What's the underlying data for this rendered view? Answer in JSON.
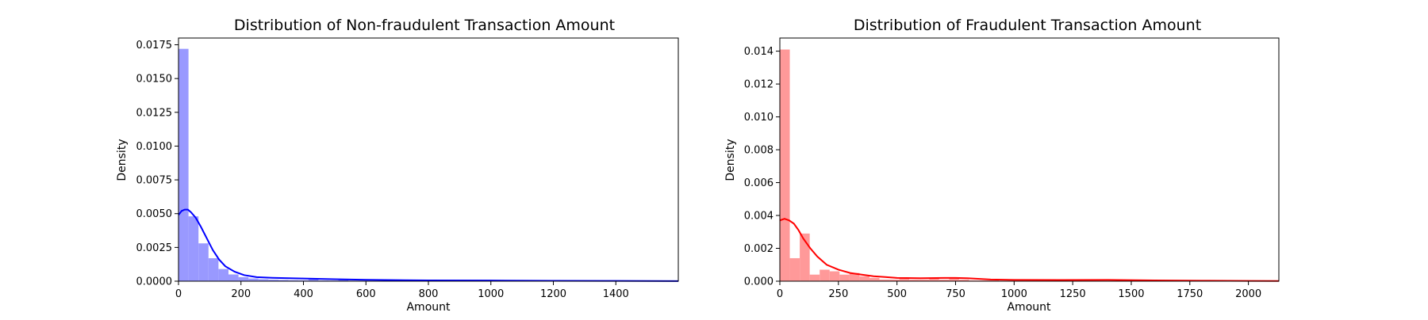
{
  "chart_data": [
    {
      "type": "bar",
      "title": "Distribution of Non-fraudulent Transaction Amount",
      "xlabel": "Amount",
      "ylabel": "Density",
      "xlim": [
        0,
        1600
      ],
      "ylim": [
        0,
        0.018
      ],
      "grid": false,
      "xticks": [
        "0",
        "200",
        "400",
        "600",
        "800",
        "1000",
        "1200",
        "1400"
      ],
      "yticks": [
        "0.0000",
        "0.0025",
        "0.0050",
        "0.0075",
        "0.0100",
        "0.0125",
        "0.0150",
        "0.0175"
      ],
      "colors": {
        "bar": "#9999ff",
        "line": "#0000ff"
      },
      "histogram": {
        "bin_width": 32,
        "densities": [
          0.0172,
          0.0048,
          0.0028,
          0.0017,
          0.0009,
          0.0005,
          0.0003,
          0.0002,
          0.00015,
          0.00012,
          0.0001,
          8e-05,
          7e-05,
          0.00015,
          6e-05,
          5e-05,
          0.00012,
          4e-05,
          4e-05,
          3e-05,
          3e-05,
          2e-05,
          2e-05,
          9e-05,
          2e-05,
          2e-05,
          1e-05,
          1e-05,
          1e-05,
          1e-05,
          3e-05,
          1e-05,
          1e-05,
          1e-05,
          1e-05,
          1e-05,
          1e-05,
          1e-05,
          1e-05,
          1e-05,
          1e-05,
          1e-05,
          1e-05,
          1e-05,
          1e-05,
          1e-05,
          1e-05,
          1e-05,
          1e-05,
          1e-05
        ]
      },
      "kde": {
        "x": [
          0,
          10,
          20,
          30,
          40,
          55,
          70,
          90,
          110,
          130,
          150,
          180,
          210,
          250,
          300,
          400,
          500,
          600,
          800,
          1000,
          1200,
          1400,
          1600
        ],
        "y": [
          0.0049,
          0.0052,
          0.0053,
          0.0053,
          0.0051,
          0.0047,
          0.0041,
          0.0032,
          0.0023,
          0.0016,
          0.0011,
          0.0007,
          0.00045,
          0.0003,
          0.00025,
          0.0002,
          0.00015,
          0.0001,
          6e-05,
          5e-05,
          3e-05,
          2e-05,
          1e-05
        ]
      }
    },
    {
      "type": "bar",
      "title": "Distribution of Fraudulent Transaction Amount",
      "xlabel": "Amount",
      "ylabel": "Density",
      "xlim": [
        0,
        2130
      ],
      "ylim": [
        0,
        0.0148
      ],
      "grid": false,
      "xticks": [
        "0",
        "250",
        "500",
        "750",
        "1000",
        "1250",
        "1500",
        "1750",
        "2000"
      ],
      "yticks": [
        "0.000",
        "0.002",
        "0.004",
        "0.006",
        "0.008",
        "0.010",
        "0.012",
        "0.014"
      ],
      "colors": {
        "bar": "#ff9999",
        "line": "#ff0000"
      },
      "histogram": {
        "bin_width": 42.5,
        "densities": [
          0.0141,
          0.0014,
          0.0029,
          0.0004,
          0.0007,
          0.0006,
          0.0004,
          0.0005,
          0.0003,
          0.0002,
          0.0001,
          0.0001,
          0.0002,
          0.0001,
          0.0001,
          0.0002,
          0.0001,
          0.0002,
          0.0001,
          5e-05,
          5e-05,
          5e-05,
          3e-05,
          3e-05,
          3e-05,
          3e-05,
          3e-05,
          3e-05,
          3e-05,
          3e-05,
          3e-05,
          3e-05,
          2e-05,
          2e-05,
          2e-05,
          2e-05,
          2e-05,
          2e-05,
          2e-05,
          2e-05,
          2e-05,
          2e-05,
          2e-05,
          2e-05,
          2e-05,
          2e-05,
          2e-05,
          2e-05,
          2e-05,
          2e-05
        ]
      },
      "kde": {
        "x": [
          0,
          20,
          40,
          60,
          80,
          100,
          130,
          160,
          200,
          250,
          300,
          350,
          400,
          450,
          500,
          600,
          700,
          750,
          800,
          900,
          1000,
          1200,
          1400,
          1600,
          1800,
          2000,
          2130
        ],
        "y": [
          0.0037,
          0.0038,
          0.0037,
          0.0035,
          0.0031,
          0.0026,
          0.002,
          0.0015,
          0.001,
          0.0007,
          0.0005,
          0.0004,
          0.0003,
          0.00025,
          0.0002,
          0.00018,
          0.0002,
          0.0002,
          0.00018,
          0.0001,
          8e-05,
          7e-05,
          8e-05,
          5e-05,
          3e-05,
          2e-05,
          1e-05
        ]
      }
    }
  ]
}
